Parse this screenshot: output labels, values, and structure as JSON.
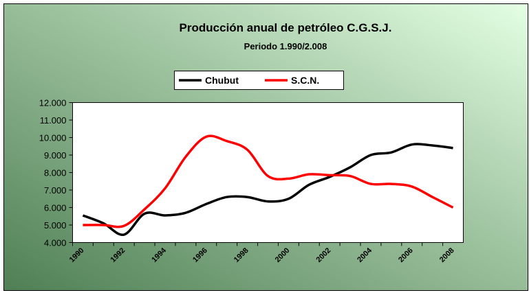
{
  "chart_data": {
    "type": "line",
    "title": "Producción anual de petróleo C.G.S.J.",
    "subtitle": "Periodo 1.990/2.008",
    "categories": [
      "1990",
      null,
      "1992",
      null,
      "1994",
      null,
      "1996",
      null,
      "1998",
      null,
      "2000",
      null,
      "2002",
      null,
      "2004",
      null,
      "2006",
      null,
      "2008"
    ],
    "series": [
      {
        "name": "Chubut",
        "color": "#000000",
        "values": [
          5550,
          5100,
          4450,
          5650,
          5550,
          5700,
          6200,
          6600,
          6600,
          6350,
          6500,
          7300,
          7750,
          8300,
          9000,
          9150,
          9600,
          9550,
          9400
        ]
      },
      {
        "name": "S.C.N.",
        "color": "#ff0000",
        "values": [
          5000,
          5000,
          4950,
          5900,
          7100,
          8900,
          10050,
          9800,
          9300,
          7800,
          7650,
          7900,
          7850,
          7800,
          7350,
          7350,
          7200,
          6600,
          6000
        ]
      }
    ],
    "ylim": [
      4000,
      12000
    ],
    "yticks": [
      {
        "value": 4000,
        "label": "4.000"
      },
      {
        "value": 5000,
        "label": "5.000"
      },
      {
        "value": 6000,
        "label": "6.000"
      },
      {
        "value": 7000,
        "label": "7.000"
      },
      {
        "value": 8000,
        "label": "8.000"
      },
      {
        "value": 9000,
        "label": "9.000"
      },
      {
        "value": 10000,
        "label": "10.000"
      },
      {
        "value": 11000,
        "label": "11.000"
      },
      {
        "value": 12000,
        "label": "12.000"
      }
    ],
    "legend": "top",
    "smooth": true
  }
}
